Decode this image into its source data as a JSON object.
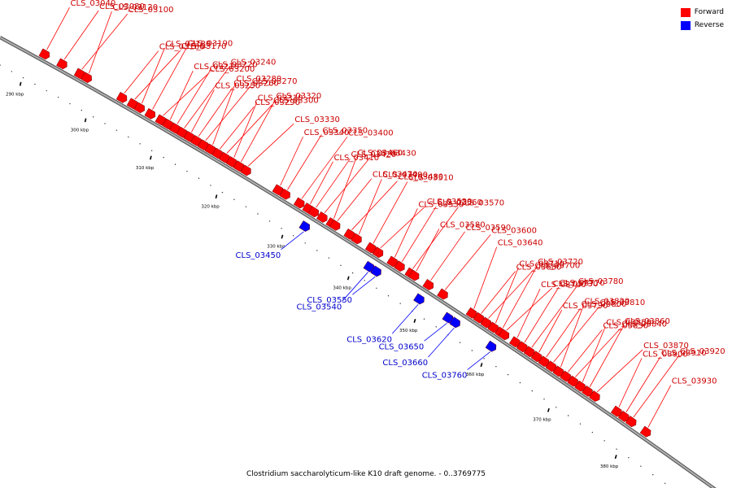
{
  "legend": [
    {
      "label": "Forward",
      "color": "#ff0000"
    },
    {
      "label": "Reverse",
      "color": "#0000ff"
    }
  ],
  "caption": "Clostridium saccharolyticum-like K10 draft genome. - 0..3769775",
  "colors": {
    "forward": "#ff0000",
    "reverse": "#0000ff",
    "backbone": "#7f7f7f"
  },
  "kbp_ticks": [
    "290 kbp",
    "300 kbp",
    "310 kbp",
    "320 kbp",
    "330 kbp",
    "340 kbp",
    "350 kbp",
    "360 kbp",
    "370 kbp",
    "380 kbp"
  ],
  "forward_genes": [
    {
      "name": "CLS_03040",
      "t": 0.06
    },
    {
      "name": "CLS_03080",
      "t": 0.085
    },
    {
      "name": "CLS_03100",
      "t": 0.11
    },
    {
      "name": "CLS_03120",
      "t": 0.12
    },
    {
      "name": "CLS_03160",
      "t": 0.17
    },
    {
      "name": "CLS_03170",
      "t": 0.185
    },
    {
      "name": "CLS_03180",
      "t": 0.195
    },
    {
      "name": "CLS_03190",
      "t": 0.21
    },
    {
      "name": "CLS_03200",
      "t": 0.225
    },
    {
      "name": "CLS_03210",
      "t": 0.235
    },
    {
      "name": "CLS_03220",
      "t": 0.245
    },
    {
      "name": "CLS_03240",
      "t": 0.255
    },
    {
      "name": "CLS_03250",
      "t": 0.265
    },
    {
      "name": "CLS_03260",
      "t": 0.275
    },
    {
      "name": "CLS_03270",
      "t": 0.285
    },
    {
      "name": "CLS_03280",
      "t": 0.295
    },
    {
      "name": "CLS_03290",
      "t": 0.305
    },
    {
      "name": "CLS_03300",
      "t": 0.315
    },
    {
      "name": "CLS_03310",
      "t": 0.325
    },
    {
      "name": "CLS_03320",
      "t": 0.335
    },
    {
      "name": "CLS_03330",
      "t": 0.345
    },
    {
      "name": "CLS_03340",
      "t": 0.39
    },
    {
      "name": "CLS_03350",
      "t": 0.4
    },
    {
      "name": "CLS_03400",
      "t": 0.42
    },
    {
      "name": "CLS_03410",
      "t": 0.432
    },
    {
      "name": "CLS_03420",
      "t": 0.44
    },
    {
      "name": "CLS_03430",
      "t": 0.452
    },
    {
      "name": "CLS_03460",
      "t": 0.465
    },
    {
      "name": "CLS_03470",
      "t": 0.47
    },
    {
      "name": "CLS_03480",
      "t": 0.49
    },
    {
      "name": "CLS_03490",
      "t": 0.5
    },
    {
      "name": "CLS_03510",
      "t": 0.52
    },
    {
      "name": "CLS_03520",
      "t": 0.53
    },
    {
      "name": "CLS_03530",
      "t": 0.55
    },
    {
      "name": "CLS_03560",
      "t": 0.56
    },
    {
      "name": "CLS_03570",
      "t": 0.575
    },
    {
      "name": "CLS_03580",
      "t": 0.58
    },
    {
      "name": "CLS_03590",
      "t": 0.6
    },
    {
      "name": "CLS_03600",
      "t": 0.62
    },
    {
      "name": "CLS_03640",
      "t": 0.66
    },
    {
      "name": "CLS_03680",
      "t": 0.67
    },
    {
      "name": "CLS_03700",
      "t": 0.68
    },
    {
      "name": "CLS_03710",
      "t": 0.69
    },
    {
      "name": "CLS_03720",
      "t": 0.7
    },
    {
      "name": "CLS_03730",
      "t": 0.705
    },
    {
      "name": "CLS_03740",
      "t": 0.72
    },
    {
      "name": "CLS_03770",
      "t": 0.73
    },
    {
      "name": "CLS_03780",
      "t": 0.74
    },
    {
      "name": "CLS_03790",
      "t": 0.75
    },
    {
      "name": "CLS_03800",
      "t": 0.76
    },
    {
      "name": "CLS_03810",
      "t": 0.77
    },
    {
      "name": "CLS_03820",
      "t": 0.78
    },
    {
      "name": "CLS_03830",
      "t": 0.79
    },
    {
      "name": "CLS_03840",
      "t": 0.8
    },
    {
      "name": "CLS_03850",
      "t": 0.81
    },
    {
      "name": "CLS_03860",
      "t": 0.82
    },
    {
      "name": "CLS_03870",
      "t": 0.83
    },
    {
      "name": "CLS_03900",
      "t": 0.86
    },
    {
      "name": "CLS_03910",
      "t": 0.87
    },
    {
      "name": "CLS_03920",
      "t": 0.88
    },
    {
      "name": "CLS_03930",
      "t": 0.9
    }
  ],
  "reverse_genes": [
    {
      "name": "CLS_03450",
      "t": 0.44
    },
    {
      "name": "CLS_03540",
      "t": 0.53
    },
    {
      "name": "CLS_03550",
      "t": 0.54
    },
    {
      "name": "CLS_03620",
      "t": 0.6
    },
    {
      "name": "CLS_03650",
      "t": 0.64
    },
    {
      "name": "CLS_03660",
      "t": 0.65
    },
    {
      "name": "CLS_03760",
      "t": 0.7
    }
  ]
}
